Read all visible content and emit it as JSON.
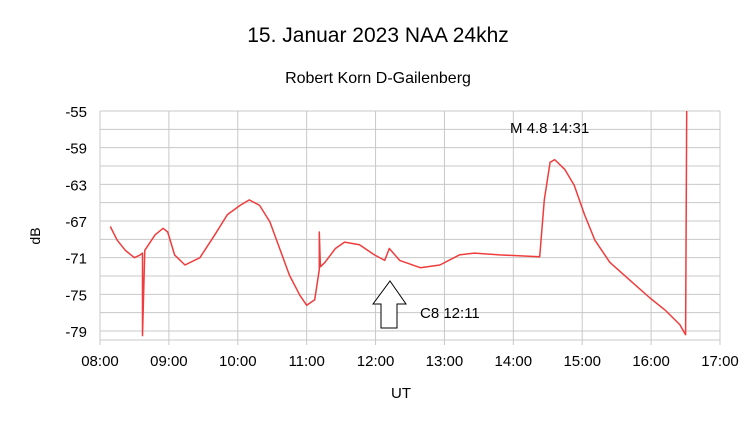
{
  "chart_data": {
    "type": "line",
    "title": "15. Januar 2023  NAA 24khz",
    "subtitle": "Robert Korn D-Gailenberg",
    "xlabel": "UT",
    "ylabel": "dB",
    "xlim": [
      "08:00",
      "17:00"
    ],
    "ylim": [
      -80,
      -55
    ],
    "x_ticks": [
      "08:00",
      "09:00",
      "10:00",
      "11:00",
      "12:00",
      "13:00",
      "14:00",
      "15:00",
      "16:00",
      "17:00"
    ],
    "y_ticks": [
      "-55",
      "-59",
      "-63",
      "-67",
      "-71",
      "-75",
      "-79"
    ],
    "grid": true,
    "line_color": "#f03c3c",
    "series": [
      {
        "x": [
          "08:09",
          "08:15",
          "08:22",
          "08:30",
          "08:35",
          "08:37",
          "08:37",
          "08:39",
          "08:48",
          "08:55",
          "08:59",
          "09:05",
          "09:14",
          "09:27",
          "09:40",
          "09:51",
          "10:02",
          "10:10",
          "10:19",
          "10:28",
          "10:37",
          "10:45",
          "10:54",
          "11:00",
          "11:07",
          "11:11",
          "11:11",
          "11:12",
          "11:16",
          "11:25",
          "11:33",
          "11:46",
          "11:59",
          "12:08",
          "12:12",
          "12:21",
          "12:39",
          "12:56",
          "13:13",
          "13:26",
          "13:48",
          "14:23",
          "14:27",
          "14:32",
          "14:36",
          "14:45",
          "14:53",
          "15:02",
          "15:11",
          "15:24",
          "15:41",
          "15:59",
          "16:12",
          "16:25",
          "16:30",
          "16:31"
        ],
        "y": [
          -67.6,
          -69.1,
          -70.2,
          -71.0,
          -70.7,
          -70.5,
          -79.5,
          -70.2,
          -68.5,
          -67.8,
          -68.2,
          -70.7,
          -71.8,
          -71.0,
          -68.5,
          -66.3,
          -65.3,
          -64.7,
          -65.3,
          -67.1,
          -70.2,
          -72.9,
          -75.1,
          -76.2,
          -75.6,
          -72.3,
          -68.2,
          -72.0,
          -71.5,
          -70.0,
          -69.3,
          -69.6,
          -70.7,
          -71.3,
          -70.0,
          -71.3,
          -72.1,
          -71.8,
          -70.7,
          -70.5,
          -70.7,
          -70.9,
          -64.7,
          -60.6,
          -60.3,
          -61.4,
          -63.1,
          -66.3,
          -69.1,
          -71.5,
          -73.4,
          -75.4,
          -76.7,
          -78.3,
          -79.4,
          -55
        ]
      }
    ],
    "annotations": [
      {
        "text": "M 4.8  14:31"
      },
      {
        "text": "C8 12:11",
        "arrow": "up",
        "at": "12:11"
      }
    ]
  }
}
